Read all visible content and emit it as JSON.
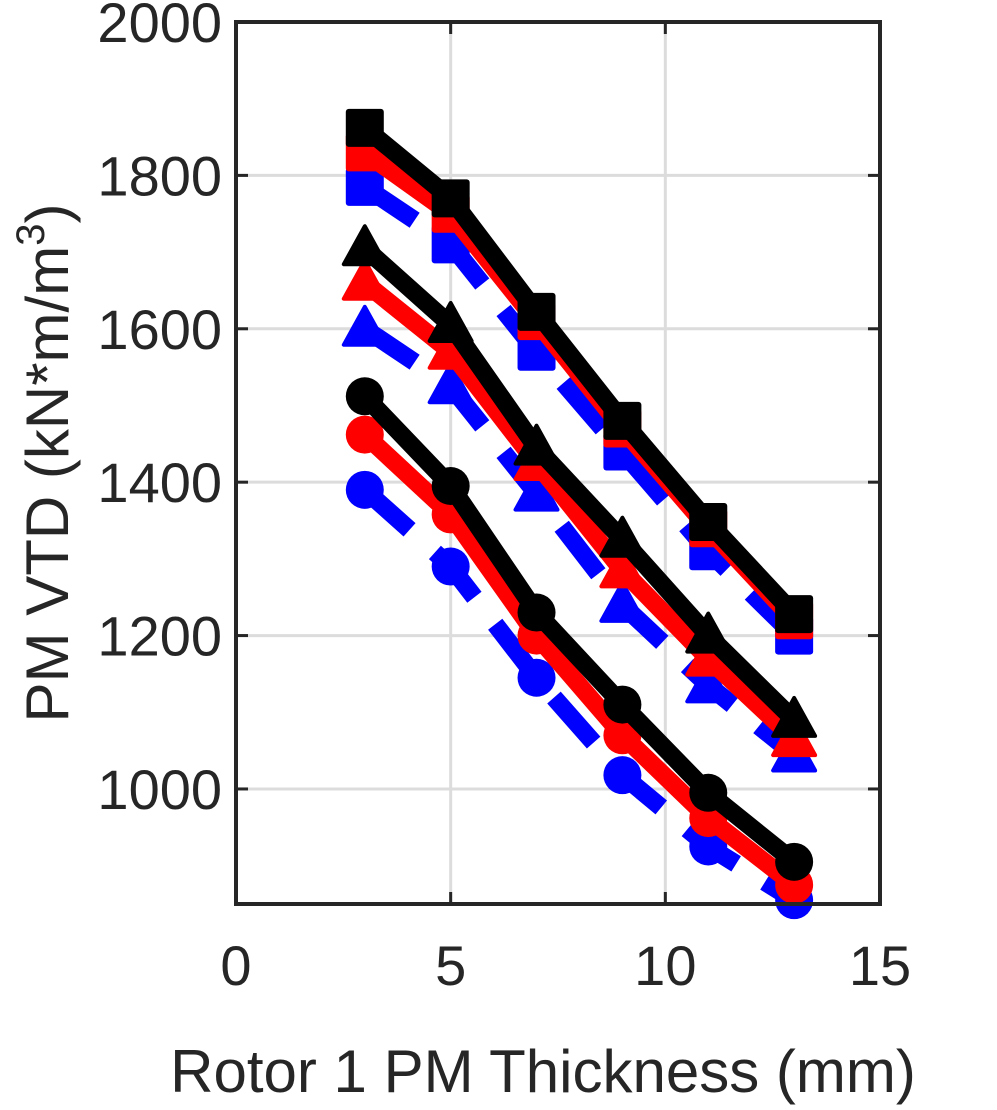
{
  "chart_data": {
    "type": "line",
    "title": "",
    "xlabel": "Rotor 1 PM Thickness (mm)",
    "ylabel": "PM VTD (kN*m/m",
    "ylabel_superscript": "3",
    "ylabel_suffix": ")",
    "xlim": [
      0,
      15
    ],
    "ylim": [
      850,
      2000
    ],
    "xticks": [
      0,
      5,
      10,
      15
    ],
    "yticks": [
      1000,
      1200,
      1400,
      1600,
      1800,
      2000
    ],
    "grid": true,
    "x": [
      3,
      5,
      7,
      9,
      11,
      13
    ],
    "series": [
      {
        "color": "#0000ff",
        "marker": "circle",
        "dash": "dashed",
        "values": [
          1390,
          1290,
          1145,
          1018,
          925,
          855
        ]
      },
      {
        "color": "#ff0000",
        "marker": "circle",
        "dash": "solid",
        "values": [
          1462,
          1358,
          1200,
          1070,
          962,
          875
        ]
      },
      {
        "color": "#000000",
        "marker": "circle",
        "dash": "solid",
        "values": [
          1512,
          1395,
          1230,
          1110,
          995,
          905
        ]
      },
      {
        "color": "#0000ff",
        "marker": "triangle",
        "dash": "dashed",
        "values": [
          1600,
          1525,
          1385,
          1240,
          1135,
          1045
        ]
      },
      {
        "color": "#ff0000",
        "marker": "triangle",
        "dash": "solid",
        "values": [
          1660,
          1570,
          1425,
          1285,
          1170,
          1065
        ]
      },
      {
        "color": "#000000",
        "marker": "triangle",
        "dash": "solid",
        "values": [
          1705,
          1605,
          1445,
          1325,
          1200,
          1090
        ]
      },
      {
        "color": "#0000ff",
        "marker": "square",
        "dash": "dashed",
        "values": [
          1785,
          1710,
          1570,
          1440,
          1310,
          1200
        ]
      },
      {
        "color": "#ff0000",
        "marker": "square",
        "dash": "solid",
        "values": [
          1830,
          1750,
          1610,
          1470,
          1340,
          1220
        ]
      },
      {
        "color": "#000000",
        "marker": "square",
        "dash": "solid",
        "values": [
          1862,
          1770,
          1622,
          1480,
          1348,
          1228
        ]
      }
    ]
  }
}
